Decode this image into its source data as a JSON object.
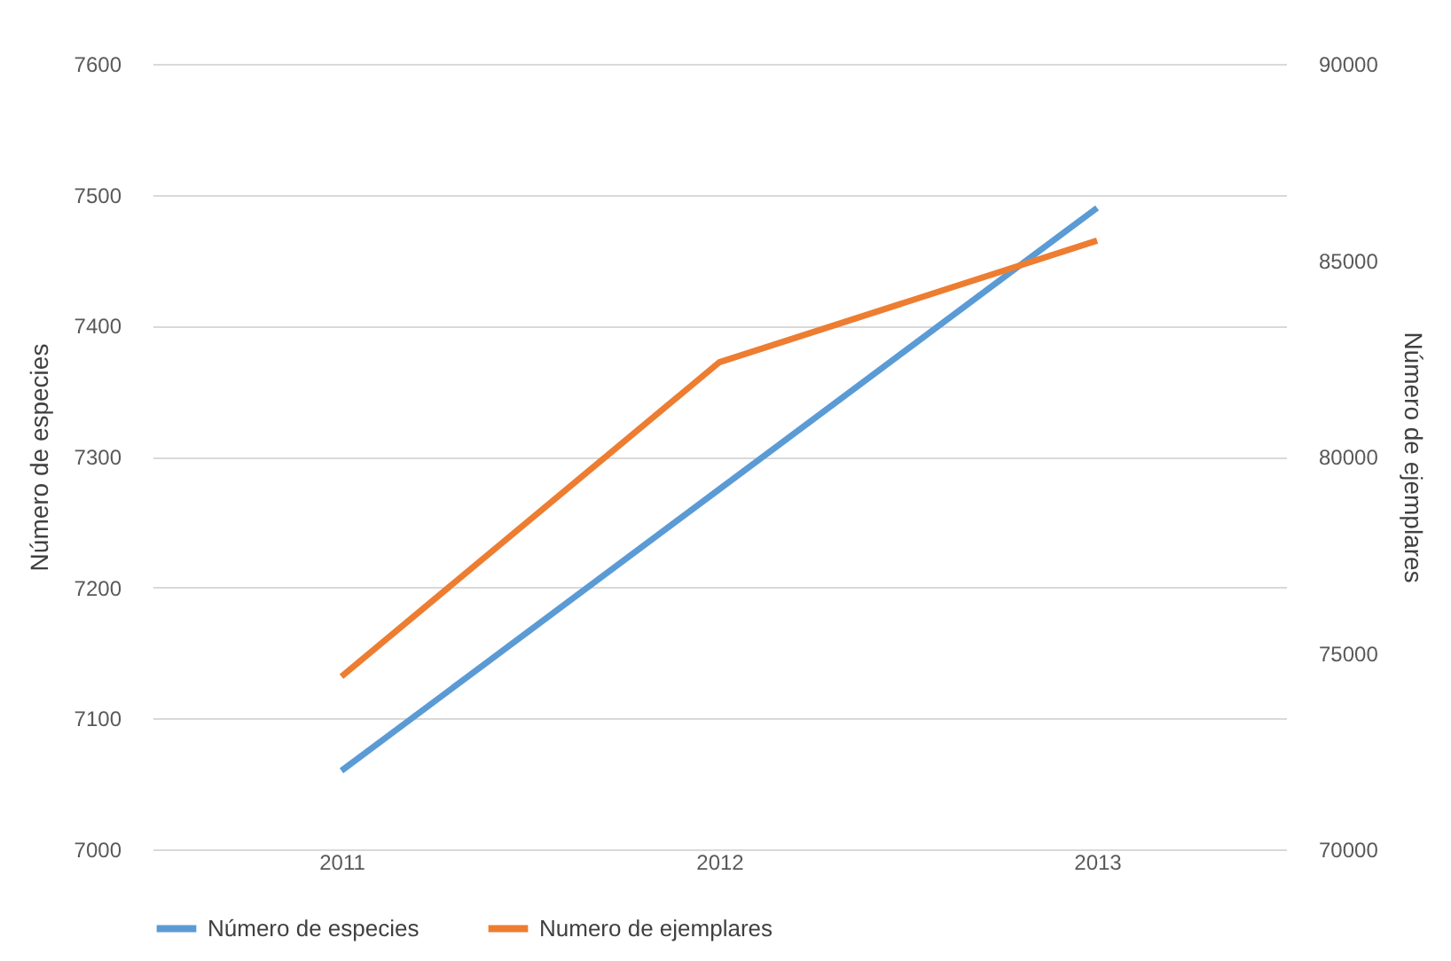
{
  "chart_data": {
    "type": "line",
    "categories": [
      "2011",
      "2012",
      "2013"
    ],
    "ylabel": "Número de especies",
    "y2label": "Número de ejemplares",
    "series": [
      {
        "name": "Número de especies",
        "color": "#5b9bd5",
        "values": [
          7060,
          7275,
          7490
        ]
      },
      {
        "name": "Numero de ejemplares",
        "color": "#ed7d31",
        "values": [
          74400,
          82400,
          85500
        ],
        "axis": "y2"
      }
    ],
    "ylim": [
      7000,
      7600
    ],
    "yticks": [
      7000,
      7100,
      7200,
      7300,
      7400,
      7500,
      7600
    ],
    "y2lim": [
      70000,
      90000
    ],
    "y2ticks": [
      70000,
      75000,
      80000,
      85000,
      90000
    ],
    "grid": "y",
    "legend": "bottom",
    "marker": "none",
    "line_style": "solid"
  }
}
